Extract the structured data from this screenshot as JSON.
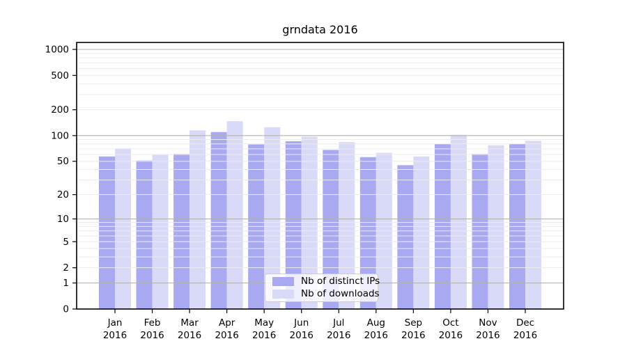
{
  "title": "grndata 2016",
  "colors": {
    "ips_bar": "#a9a9f2",
    "downloads_bar": "#d9d9f8",
    "major_grid": "#b3b3b3",
    "minor_grid": "#ececec",
    "axis": "#000000",
    "legend_border": "#cccccc",
    "background": "#ffffff"
  },
  "legend": {
    "items": [
      {
        "label": "Nb of distinct IPs",
        "color": "#a9a9f2"
      },
      {
        "label": "Nb of downloads",
        "color": "#d9d9f8"
      }
    ]
  },
  "chart_data": {
    "type": "bar",
    "title": "grndata 2016",
    "categories": [
      "Jan 2016",
      "Feb 2016",
      "Mar 2016",
      "Apr 2016",
      "May 2016",
      "Jun 2016",
      "Jul 2016",
      "Aug 2016",
      "Sep 2016",
      "Oct 2016",
      "Nov 2016",
      "Dec 2016"
    ],
    "months": [
      "Jan",
      "Feb",
      "Mar",
      "Apr",
      "May",
      "Jun",
      "Jul",
      "Aug",
      "Sep",
      "Oct",
      "Nov",
      "Dec"
    ],
    "year": "2016",
    "series": [
      {
        "name": "Nb of distinct IPs",
        "color": "#a9a9f2",
        "values": [
          57,
          51,
          61,
          110,
          79,
          86,
          68,
          56,
          45,
          80,
          61,
          80
        ]
      },
      {
        "name": "Nb of downloads",
        "color": "#d9d9f8",
        "values": [
          71,
          60,
          115,
          147,
          125,
          97,
          84,
          63,
          57,
          102,
          77,
          87
        ]
      }
    ],
    "xlabel": "",
    "ylabel": "",
    "y_scale": "log10(1+v)",
    "y_ticks": [
      0,
      1,
      2,
      5,
      10,
      20,
      50,
      100,
      200,
      500,
      1000
    ],
    "y_minor_gridlines": [
      2,
      3,
      4,
      5,
      6,
      7,
      8,
      9,
      20,
      30,
      40,
      50,
      60,
      70,
      80,
      90,
      200,
      300,
      400,
      500,
      600,
      700,
      800,
      900
    ],
    "y_major_gridlines": [
      1,
      10,
      100,
      1000
    ],
    "ylim": [
      0,
      1200
    ],
    "grid": "horizontal",
    "legend_position": "lower center"
  }
}
